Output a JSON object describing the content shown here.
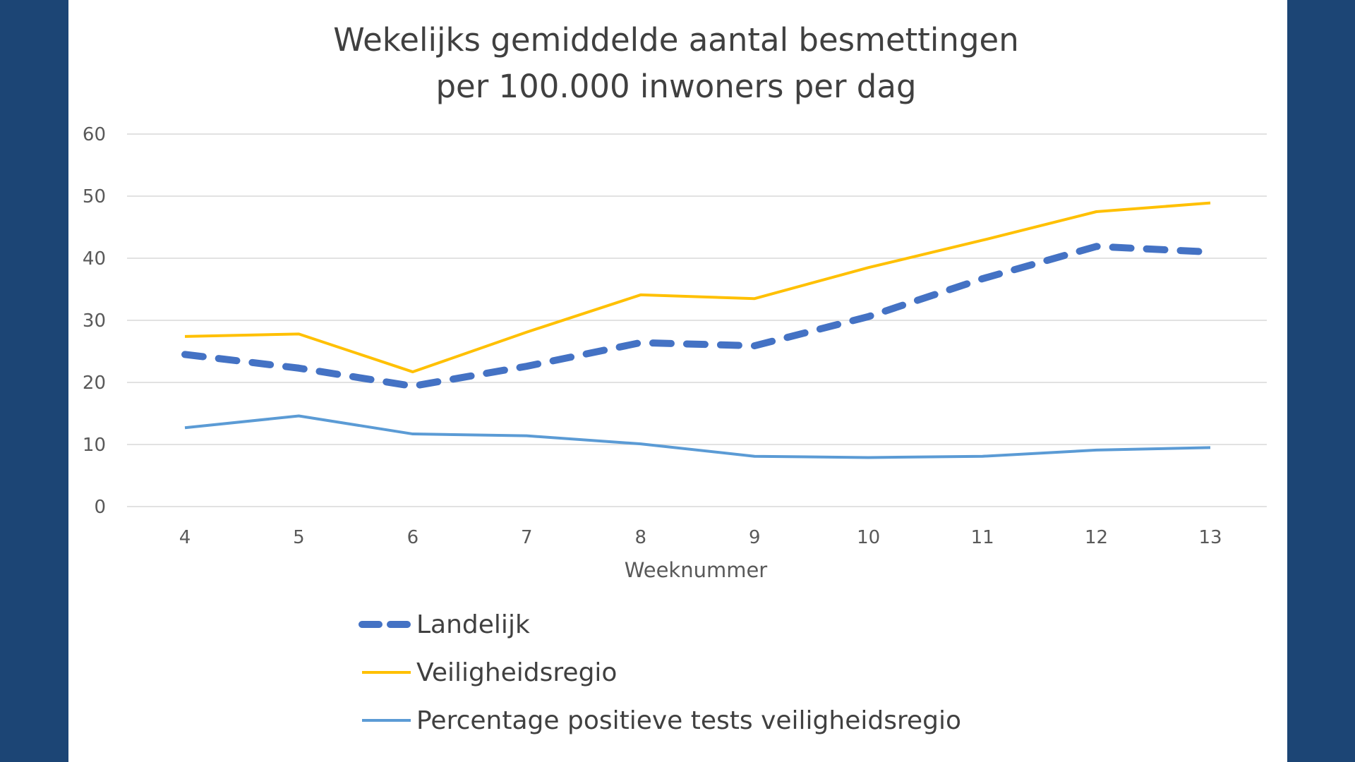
{
  "chart_data": {
    "type": "line",
    "title_lines": [
      "Wekelijks gemiddelde aantal besmettingen",
      "per 100.000 inwoners per dag"
    ],
    "xlabel": "Weeknummer",
    "ylabel": "",
    "categories": [
      "4",
      "5",
      "6",
      "7",
      "8",
      "9",
      "10",
      "11",
      "12",
      "13"
    ],
    "ylim": [
      0,
      60
    ],
    "yticks": [
      "0",
      "10",
      "20",
      "30",
      "40",
      "50",
      "60"
    ],
    "grid": true,
    "legend_position": "bottom",
    "series": [
      {
        "name": "Landelijk",
        "values": [
          24.5,
          22.3,
          19.4,
          22.6,
          26.4,
          25.9,
          30.6,
          36.7,
          41.9,
          41.0
        ],
        "color": "#4472c4",
        "style": "dashed"
      },
      {
        "name": "Veiligheidsregio",
        "values": [
          27.4,
          27.8,
          21.7,
          28.1,
          34.1,
          33.5,
          38.5,
          42.9,
          47.5,
          48.9
        ],
        "color": "#ffc000",
        "style": "solid"
      },
      {
        "name": "Percentage positieve tests veiligheidsregio",
        "values": [
          12.7,
          14.6,
          11.7,
          11.4,
          10.1,
          8.1,
          7.9,
          8.1,
          9.1,
          9.5
        ],
        "color": "#5b9bd5",
        "style": "solid"
      }
    ]
  },
  "colors": {
    "background_frame": "#1c4575",
    "panel": "#ffffff"
  }
}
